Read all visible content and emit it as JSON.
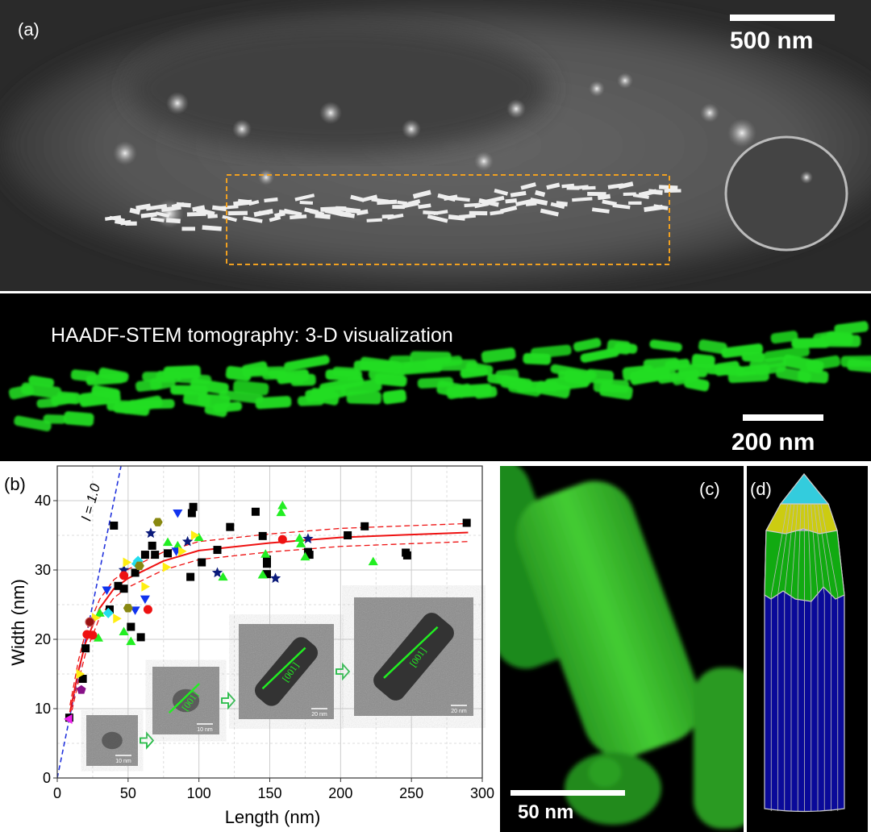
{
  "panel_a": {
    "label": "(a)",
    "scale_bar": "500 nm",
    "roi_color": "#f0a020"
  },
  "panel_tomo": {
    "title": "HAADF-STEM tomography: 3-D visualization",
    "scale_bar": "200 nm",
    "rod_color": "#22dd22"
  },
  "panel_c": {
    "label": "(c)",
    "scale_bar": "50 nm"
  },
  "panel_d": {
    "label": "(d)",
    "colors": {
      "tip": "#33ccdd",
      "band1": "#cccc11",
      "band2": "#11aa11",
      "body": "#0a0a99"
    }
  },
  "chart_data": {
    "type": "scatter",
    "panel_label": "(b)",
    "xlabel": "Length (nm)",
    "ylabel": "Width (nm)",
    "xlim": [
      0,
      300
    ],
    "ylim": [
      0,
      45
    ],
    "xticks": [
      "0",
      "50",
      "100",
      "150",
      "200",
      "250",
      "300"
    ],
    "yticks": [
      "0",
      "10",
      "20",
      "30",
      "40"
    ],
    "grid": true,
    "annotation": "l = 1.0",
    "reference_line": {
      "label": "l = 1.0",
      "slope": 1.0,
      "color": "#2233dd",
      "style": "dashed"
    },
    "fit": {
      "color": "#ee1111",
      "x": [
        9,
        15,
        20,
        30,
        40,
        50,
        75,
        100,
        150,
        200,
        250,
        290
      ],
      "y": [
        9.5,
        15.5,
        19.5,
        24.5,
        27.3,
        28.8,
        31.3,
        32.8,
        33.9,
        34.7,
        35.1,
        35.4
      ],
      "upper": [
        10.5,
        17,
        21,
        25.8,
        28.6,
        30.1,
        32.6,
        34.1,
        35.2,
        36.0,
        36.4,
        36.7
      ],
      "lower": [
        8.5,
        14,
        18,
        23.2,
        26,
        27.5,
        30,
        31.5,
        32.6,
        33.4,
        33.8,
        34.1
      ]
    },
    "series": [
      {
        "marker": "square",
        "color": "#000000",
        "points": [
          [
            8.5,
            8.7
          ],
          [
            18,
            14.3
          ],
          [
            20,
            18.7
          ],
          [
            40,
            36.4
          ],
          [
            37,
            24.3
          ],
          [
            43,
            27.7
          ],
          [
            47,
            27.3
          ],
          [
            55,
            29.6
          ],
          [
            52,
            21.8
          ],
          [
            59,
            20.3
          ],
          [
            62,
            32.2
          ],
          [
            67,
            33.5
          ],
          [
            69,
            32.2
          ],
          [
            78,
            32.4
          ],
          [
            94,
            29
          ],
          [
            95,
            38.2
          ],
          [
            96,
            39.1
          ],
          [
            102,
            31.1
          ],
          [
            113,
            32.9
          ],
          [
            122,
            36.2
          ],
          [
            140,
            38.4
          ],
          [
            145,
            34.9
          ],
          [
            148,
            31.5
          ],
          [
            148,
            30.9
          ],
          [
            148,
            29.4
          ],
          [
            177,
            32.6
          ],
          [
            178,
            32.2
          ],
          [
            205,
            35
          ],
          [
            217,
            36.3
          ],
          [
            246,
            32.5
          ],
          [
            247,
            32.1
          ],
          [
            289,
            36.8
          ]
        ]
      },
      {
        "marker": "triangle-up",
        "color": "#22ee22",
        "points": [
          [
            29,
            20.2
          ],
          [
            30,
            23.8
          ],
          [
            47,
            21.1
          ],
          [
            52,
            19.7
          ],
          [
            78,
            34
          ],
          [
            85,
            33.5
          ],
          [
            100,
            34.7
          ],
          [
            117,
            29
          ],
          [
            145,
            29.3
          ],
          [
            147,
            32.3
          ],
          [
            158,
            38.3
          ],
          [
            159,
            39.3
          ],
          [
            171,
            34.6
          ],
          [
            172,
            33.8
          ],
          [
            175,
            31.9
          ],
          [
            223,
            31.2
          ]
        ]
      },
      {
        "marker": "triangle-down",
        "color": "#1133ee",
        "points": [
          [
            35,
            27.1
          ],
          [
            55,
            24.2
          ],
          [
            62,
            25.8
          ],
          [
            85,
            38.2
          ],
          [
            84,
            32.7
          ]
        ]
      },
      {
        "marker": "star",
        "color": "#0a1a7a",
        "points": [
          [
            47,
            30
          ],
          [
            66,
            35.3
          ],
          [
            92,
            34.1
          ],
          [
            113,
            29.6
          ],
          [
            154,
            28.8
          ],
          [
            177,
            34.5
          ]
        ]
      },
      {
        "marker": "circle",
        "color": "#ee1111",
        "points": [
          [
            21,
            20.7
          ],
          [
            25,
            20.6
          ],
          [
            47,
            29.2
          ],
          [
            64,
            24.3
          ],
          [
            159,
            34.4
          ]
        ]
      },
      {
        "marker": "triangle-right",
        "color": "#ffee11",
        "points": [
          [
            16,
            15
          ],
          [
            27,
            23.1
          ],
          [
            42,
            23
          ],
          [
            49,
            31.1
          ],
          [
            62,
            27.6
          ],
          [
            77,
            30.4
          ],
          [
            88,
            32.7
          ],
          [
            97,
            35
          ]
        ]
      },
      {
        "marker": "diamond",
        "color": "#22ddee",
        "points": [
          [
            36,
            23.8
          ],
          [
            57,
            31.3
          ],
          [
            56,
            30.9
          ]
        ]
      },
      {
        "marker": "hexagon",
        "color": "#888811",
        "points": [
          [
            50,
            24.5
          ],
          [
            58,
            30.6
          ],
          [
            71,
            36.9
          ]
        ]
      },
      {
        "marker": "pentagon",
        "color": "#881188",
        "points": [
          [
            17,
            12.7
          ]
        ]
      },
      {
        "marker": "triangle-left",
        "color": "#ee22ee",
        "points": [
          [
            8,
            8.5
          ]
        ]
      },
      {
        "marker": "sphere",
        "color": "#991111",
        "points": [
          [
            23,
            22.5
          ]
        ]
      }
    ],
    "insets": [
      {
        "direction_label": "",
        "scale_label": "10 nm"
      },
      {
        "direction_label": "[001]",
        "scale_label": "10 nm"
      },
      {
        "direction_label": "[001]",
        "scale_label": "20 nm"
      },
      {
        "direction_label": "[001]",
        "scale_label": "20 nm"
      }
    ]
  }
}
